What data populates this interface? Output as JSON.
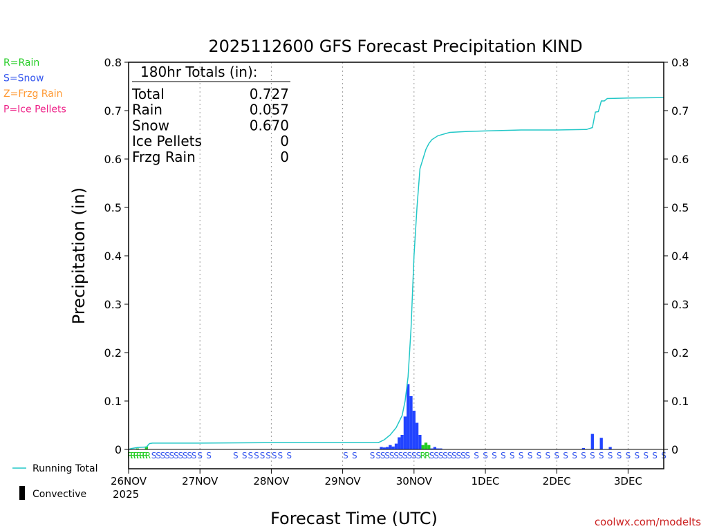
{
  "chart_data": {
    "type": "bar+line",
    "title": "2025112600 GFS Forecast Precipitation KIND",
    "ylabel": "Precipitation (in)",
    "xlabel": "Forecast Time (UTC)",
    "ylim": [
      0,
      0.8
    ],
    "xlim_hours": [
      0,
      180
    ],
    "y_ticks": [
      "0",
      "0.1",
      "0.2",
      "0.3",
      "0.4",
      "0.5",
      "0.6",
      "0.7",
      "0.8"
    ],
    "x_ticks": [
      {
        "label": "26NOV",
        "hour": 0
      },
      {
        "label": "27NOV",
        "hour": 24
      },
      {
        "label": "28NOV",
        "hour": 48
      },
      {
        "label": "29NOV",
        "hour": 72
      },
      {
        "label": "30NOV",
        "hour": 96
      },
      {
        "label": "1DEC",
        "hour": 120
      },
      {
        "label": "2DEC",
        "hour": 144
      },
      {
        "label": "3DEC",
        "hour": 168
      }
    ],
    "x_year_label": "2025",
    "totals_box": {
      "header": "180hr Totals (in):",
      "rows": [
        {
          "label": "Total",
          "value": "0.727"
        },
        {
          "label": "Rain",
          "value": "0.057"
        },
        {
          "label": "Snow",
          "value": "0.670"
        },
        {
          "label": "Ice Pellets",
          "value": "0"
        },
        {
          "label": "Frzg Rain",
          "value": "0"
        }
      ]
    },
    "type_legend": [
      {
        "text": "R=Rain",
        "color": "#22cc22"
      },
      {
        "text": "S=Snow",
        "color": "#3355ee"
      },
      {
        "text": "Z=Frzg Rain",
        "color": "#ff9933"
      },
      {
        "text": "P=Ice Pellets",
        "color": "#ee2288"
      }
    ],
    "series_legend": {
      "running_total": "Running Total",
      "convective": "Convective"
    },
    "colors": {
      "rain": "#22cc22",
      "snow": "#2244ff",
      "line": "#22c7c7",
      "grid": "#999999",
      "credit": "#cc2222"
    },
    "running_total": [
      [
        0,
        0
      ],
      [
        1,
        0.002
      ],
      [
        3,
        0.004
      ],
      [
        6,
        0.005
      ],
      [
        7,
        0.012
      ],
      [
        8,
        0.013
      ],
      [
        24,
        0.013
      ],
      [
        48,
        0.014
      ],
      [
        84,
        0.014
      ],
      [
        86,
        0.02
      ],
      [
        88,
        0.03
      ],
      [
        90,
        0.045
      ],
      [
        92,
        0.07
      ],
      [
        93,
        0.1
      ],
      [
        94,
        0.15
      ],
      [
        95,
        0.25
      ],
      [
        96,
        0.4
      ],
      [
        97,
        0.5
      ],
      [
        98,
        0.58
      ],
      [
        99,
        0.6
      ],
      [
        100,
        0.62
      ],
      [
        101,
        0.632
      ],
      [
        102,
        0.64
      ],
      [
        104,
        0.648
      ],
      [
        108,
        0.655
      ],
      [
        114,
        0.657
      ],
      [
        120,
        0.658
      ],
      [
        132,
        0.66
      ],
      [
        144,
        0.66
      ],
      [
        154,
        0.661
      ],
      [
        156,
        0.665
      ],
      [
        157,
        0.697
      ],
      [
        158,
        0.698
      ],
      [
        159,
        0.72
      ],
      [
        160,
        0.72
      ],
      [
        161,
        0.725
      ],
      [
        168,
        0.726
      ],
      [
        180,
        0.727
      ]
    ],
    "bars": [
      {
        "hour": 3,
        "value": 0.002,
        "type": "rain"
      },
      {
        "hour": 6,
        "value": 0.006,
        "type": "rain"
      },
      {
        "hour": 85,
        "value": 0.005,
        "type": "snow"
      },
      {
        "hour": 86,
        "value": 0.004,
        "type": "snow"
      },
      {
        "hour": 87,
        "value": 0.005,
        "type": "snow"
      },
      {
        "hour": 88,
        "value": 0.009,
        "type": "snow"
      },
      {
        "hour": 89,
        "value": 0.006,
        "type": "snow"
      },
      {
        "hour": 90,
        "value": 0.012,
        "type": "snow"
      },
      {
        "hour": 91,
        "value": 0.025,
        "type": "snow"
      },
      {
        "hour": 92,
        "value": 0.03,
        "type": "snow"
      },
      {
        "hour": 93,
        "value": 0.068,
        "type": "snow"
      },
      {
        "hour": 94,
        "value": 0.135,
        "type": "snow"
      },
      {
        "hour": 95,
        "value": 0.11,
        "type": "snow"
      },
      {
        "hour": 96,
        "value": 0.08,
        "type": "snow"
      },
      {
        "hour": 97,
        "value": 0.055,
        "type": "snow"
      },
      {
        "hour": 98,
        "value": 0.03,
        "type": "snow"
      },
      {
        "hour": 99,
        "value": 0.009,
        "type": "rain"
      },
      {
        "hour": 100,
        "value": 0.014,
        "type": "rain"
      },
      {
        "hour": 101,
        "value": 0.009,
        "type": "rain"
      },
      {
        "hour": 102,
        "value": 0.002,
        "type": "snow"
      },
      {
        "hour": 103,
        "value": 0.005,
        "type": "snow"
      },
      {
        "hour": 104,
        "value": 0.002,
        "type": "snow"
      },
      {
        "hour": 105,
        "value": 0.002,
        "type": "snow"
      },
      {
        "hour": 153,
        "value": 0.003,
        "type": "snow"
      },
      {
        "hour": 156,
        "value": 0.032,
        "type": "snow"
      },
      {
        "hour": 159,
        "value": 0.024,
        "type": "snow"
      },
      {
        "hour": 162,
        "value": 0.005,
        "type": "snow"
      }
    ],
    "ptype_markers": [
      {
        "hour": 0.5,
        "type": "R"
      },
      {
        "hour": 1.5,
        "type": "R"
      },
      {
        "hour": 2.5,
        "type": "R"
      },
      {
        "hour": 3.5,
        "type": "R"
      },
      {
        "hour": 4.5,
        "type": "R"
      },
      {
        "hour": 5.5,
        "type": "R"
      },
      {
        "hour": 6.5,
        "type": "R"
      },
      {
        "hour": 8.5,
        "type": "S"
      },
      {
        "hour": 10,
        "type": "S"
      },
      {
        "hour": 11.5,
        "type": "S"
      },
      {
        "hour": 13,
        "type": "S"
      },
      {
        "hour": 14.5,
        "type": "S"
      },
      {
        "hour": 16,
        "type": "S"
      },
      {
        "hour": 17.5,
        "type": "S"
      },
      {
        "hour": 19,
        "type": "S"
      },
      {
        "hour": 20.5,
        "type": "S"
      },
      {
        "hour": 22,
        "type": "S"
      },
      {
        "hour": 24,
        "type": "S"
      },
      {
        "hour": 27,
        "type": "S"
      },
      {
        "hour": 36,
        "type": "S"
      },
      {
        "hour": 39,
        "type": "S"
      },
      {
        "hour": 41,
        "type": "S"
      },
      {
        "hour": 43,
        "type": "S"
      },
      {
        "hour": 45,
        "type": "S"
      },
      {
        "hour": 47,
        "type": "S"
      },
      {
        "hour": 49,
        "type": "S"
      },
      {
        "hour": 51,
        "type": "S"
      },
      {
        "hour": 54,
        "type": "S"
      },
      {
        "hour": 73,
        "type": "S"
      },
      {
        "hour": 76,
        "type": "S"
      },
      {
        "hour": 82,
        "type": "S"
      },
      {
        "hour": 84,
        "type": "S"
      },
      {
        "hour": 85.5,
        "type": "S"
      },
      {
        "hour": 87,
        "type": "S"
      },
      {
        "hour": 88.5,
        "type": "S"
      },
      {
        "hour": 90,
        "type": "S"
      },
      {
        "hour": 91.5,
        "type": "S"
      },
      {
        "hour": 93,
        "type": "S"
      },
      {
        "hour": 94.5,
        "type": "S"
      },
      {
        "hour": 96,
        "type": "S"
      },
      {
        "hour": 97.5,
        "type": "S"
      },
      {
        "hour": 99,
        "type": "R"
      },
      {
        "hour": 100.5,
        "type": "R"
      },
      {
        "hour": 102,
        "type": "S"
      },
      {
        "hour": 103.5,
        "type": "S"
      },
      {
        "hour": 105,
        "type": "S"
      },
      {
        "hour": 106.5,
        "type": "S"
      },
      {
        "hour": 108,
        "type": "S"
      },
      {
        "hour": 109.5,
        "type": "S"
      },
      {
        "hour": 111,
        "type": "S"
      },
      {
        "hour": 112.5,
        "type": "S"
      },
      {
        "hour": 114,
        "type": "S"
      },
      {
        "hour": 117,
        "type": "S"
      },
      {
        "hour": 120,
        "type": "S"
      },
      {
        "hour": 123,
        "type": "S"
      },
      {
        "hour": 126,
        "type": "S"
      },
      {
        "hour": 129,
        "type": "S"
      },
      {
        "hour": 132,
        "type": "S"
      },
      {
        "hour": 135,
        "type": "S"
      },
      {
        "hour": 138,
        "type": "S"
      },
      {
        "hour": 141,
        "type": "S"
      },
      {
        "hour": 144,
        "type": "S"
      },
      {
        "hour": 147,
        "type": "S"
      },
      {
        "hour": 150,
        "type": "S"
      },
      {
        "hour": 153,
        "type": "S"
      },
      {
        "hour": 156,
        "type": "S"
      },
      {
        "hour": 159,
        "type": "S"
      },
      {
        "hour": 162,
        "type": "S"
      },
      {
        "hour": 165,
        "type": "S"
      },
      {
        "hour": 168,
        "type": "S"
      },
      {
        "hour": 171,
        "type": "S"
      },
      {
        "hour": 174,
        "type": "S"
      },
      {
        "hour": 177,
        "type": "S"
      },
      {
        "hour": 180,
        "type": "S"
      }
    ],
    "credit": "coolwx.com/modelts"
  }
}
